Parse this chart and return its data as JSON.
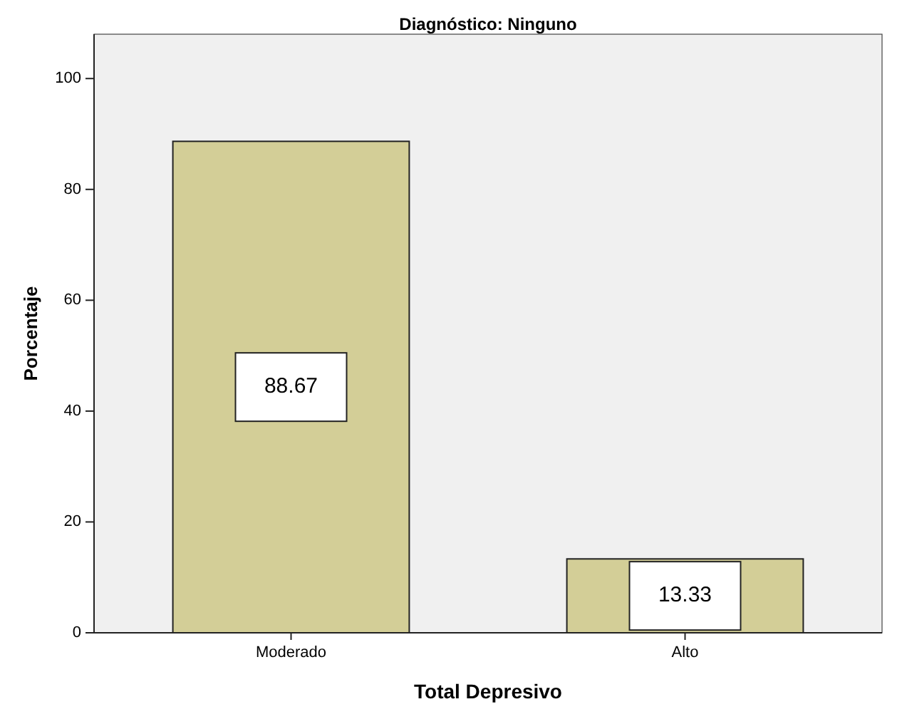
{
  "chart_data": {
    "type": "bar",
    "title": "Diagnóstico: Ninguno",
    "xlabel": "Total Depresivo",
    "ylabel": "Porcentaje",
    "categories": [
      "Moderado",
      "Alto"
    ],
    "values": [
      88.67,
      13.33
    ],
    "color": "#d3ce97",
    "ylim": [
      0,
      108
    ],
    "yticks": [
      0,
      20,
      40,
      60,
      80,
      100
    ],
    "data_labels": true
  }
}
